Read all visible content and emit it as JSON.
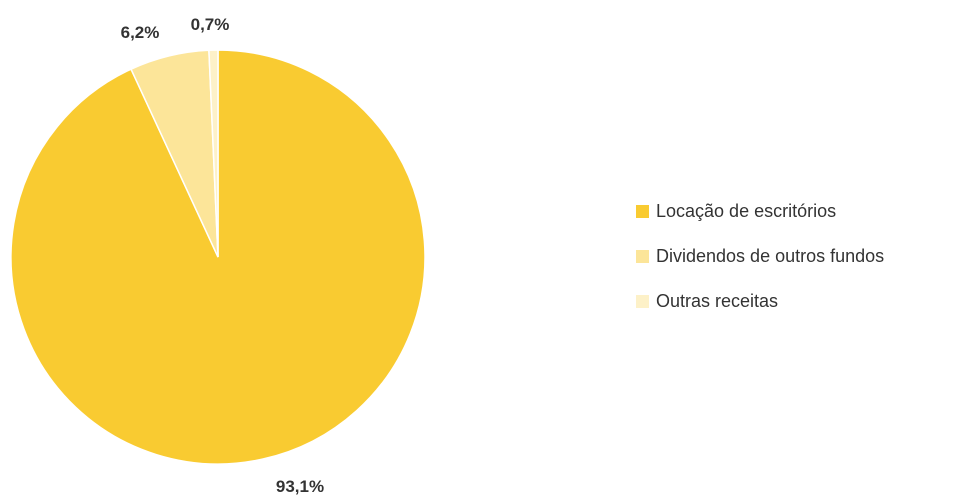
{
  "chart_data": {
    "type": "pie",
    "categories": [
      "Locação de escritórios",
      "Dividendos de outros fundos",
      "Outras receitas"
    ],
    "values": [
      93.1,
      6.2,
      0.7
    ],
    "labels": [
      "93,1%",
      "6,2%",
      "0,7%"
    ],
    "colors": [
      "#F9CB31",
      "#FCE599",
      "#FDF1C8"
    ],
    "legend_position": "right",
    "title": "",
    "xlabel": "",
    "ylabel": ""
  }
}
